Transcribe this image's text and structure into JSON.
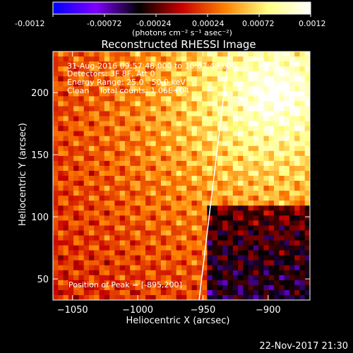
{
  "chart_data": {
    "type": "heatmap",
    "title": "Reconstructed RHESSI Image",
    "xlabel": "Heliocentric X (arcsec)",
    "ylabel": "Heliocentric Y (arcsec)",
    "xlim": [
      -1065,
      -868
    ],
    "ylim": [
      33,
      233
    ],
    "x_ticks": [
      -1050,
      -1000,
      -950,
      -900
    ],
    "y_ticks": [
      50,
      100,
      150,
      200
    ],
    "colorbar": {
      "min": -0.0012,
      "max": 0.0012,
      "ticks": [
        "-0.0012",
        "-0.00072",
        "-0.00024",
        "0.00024",
        "0.00072",
        "0.0012"
      ],
      "unit_label": "(photons cm⁻² s⁻¹ asec⁻²)",
      "colors": [
        "#0000ff",
        "#8000ff",
        "#000000",
        "#c80000",
        "#ff8000",
        "#ffff80",
        "#ffffff"
      ]
    },
    "annotations": [
      "31-Aug-2016 09:57:48.000 to 10:07:48.000",
      "Detectors: 3F 8F, Att 0",
      "Energy Range: 25.0 - 50.0 keV",
      "Clean    Total counts: 1.06E+04"
    ],
    "peak_label": "Position of Peak = [-895,200]",
    "peak": {
      "x": -895,
      "y": 200
    },
    "limb": [
      [
        -953,
        33
      ],
      [
        -930,
        233
      ]
    ],
    "grid": {
      "nx": 50,
      "ny": 50,
      "cell_arcsec": 4
    }
  },
  "footer": {
    "timestamp": "22-Nov-2017 21:30"
  }
}
